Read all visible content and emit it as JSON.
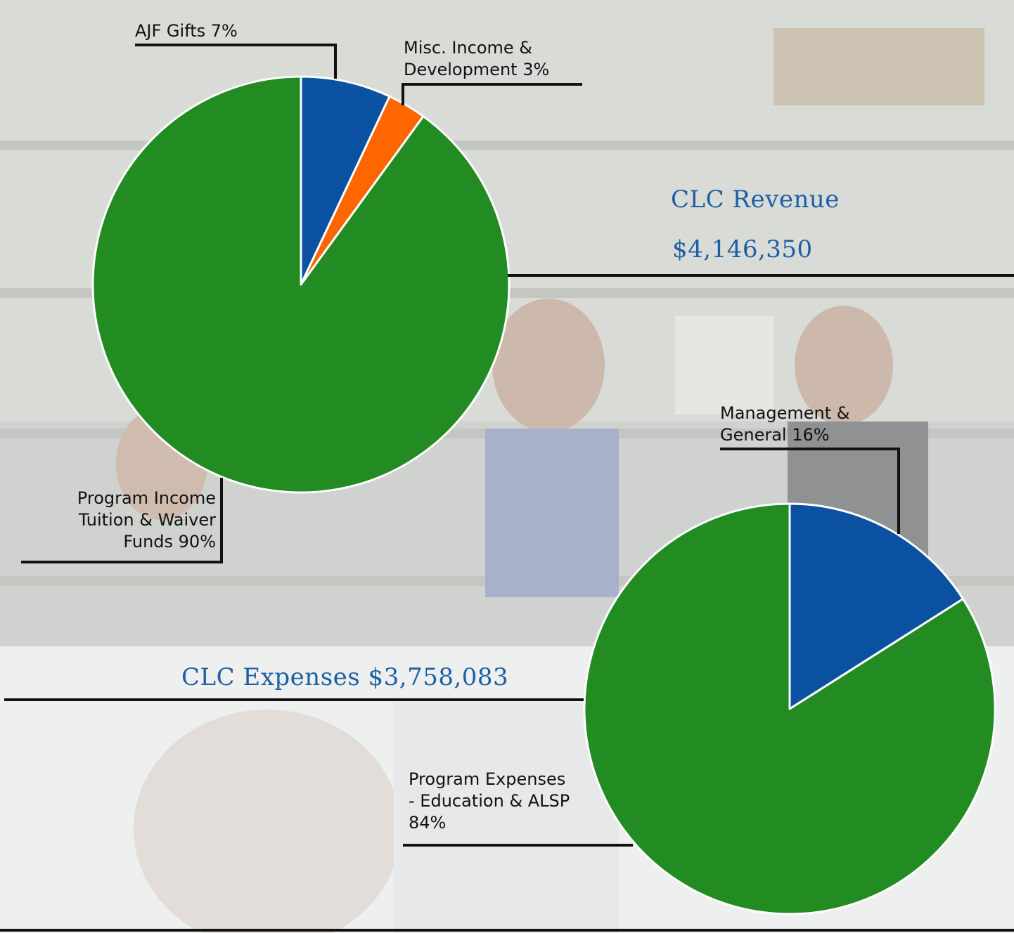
{
  "chart_data": [
    {
      "type": "pie",
      "title": "CLC Revenue",
      "total": "$4,146,350",
      "slices": [
        {
          "label": "AJF Gifts",
          "value": 7,
          "color": "#0a52a1"
        },
        {
          "label": "Misc. Income & Development",
          "value": 3,
          "color": "#ff6600"
        },
        {
          "label": "Program Income Tuition & Waiver Funds",
          "value": 90,
          "color": "#228b22"
        }
      ]
    },
    {
      "type": "pie",
      "title": "CLC Expenses",
      "total": "$3,758,083",
      "slices": [
        {
          "label": "Management & General",
          "value": 16,
          "color": "#0a52a1"
        },
        {
          "label": "Program Expenses - Education & ALSP",
          "value": 84,
          "color": "#228b22"
        }
      ]
    }
  ],
  "labels": {
    "ajf": "AJF Gifts 7%",
    "misc_1": "Misc. Income &",
    "misc_2": "Development 3%",
    "prog_income_1": "Program Income",
    "prog_income_2": "Tuition & Waiver",
    "prog_income_3": "Funds 90%",
    "mgmt_1": "Management &",
    "mgmt_2": "General 16%",
    "prog_exp_1": "Program Expenses",
    "prog_exp_2": "- Education & ALSP",
    "prog_exp_3": "84%"
  },
  "titles": {
    "revenue": "CLC Revenue",
    "revenue_total": "$4,146,350",
    "expenses": "CLC Expenses $3,758,083"
  },
  "colors": {
    "title_blue": "#1d5fa3",
    "blue": "#0a52a1",
    "orange": "#ff6600",
    "green": "#228b22"
  }
}
